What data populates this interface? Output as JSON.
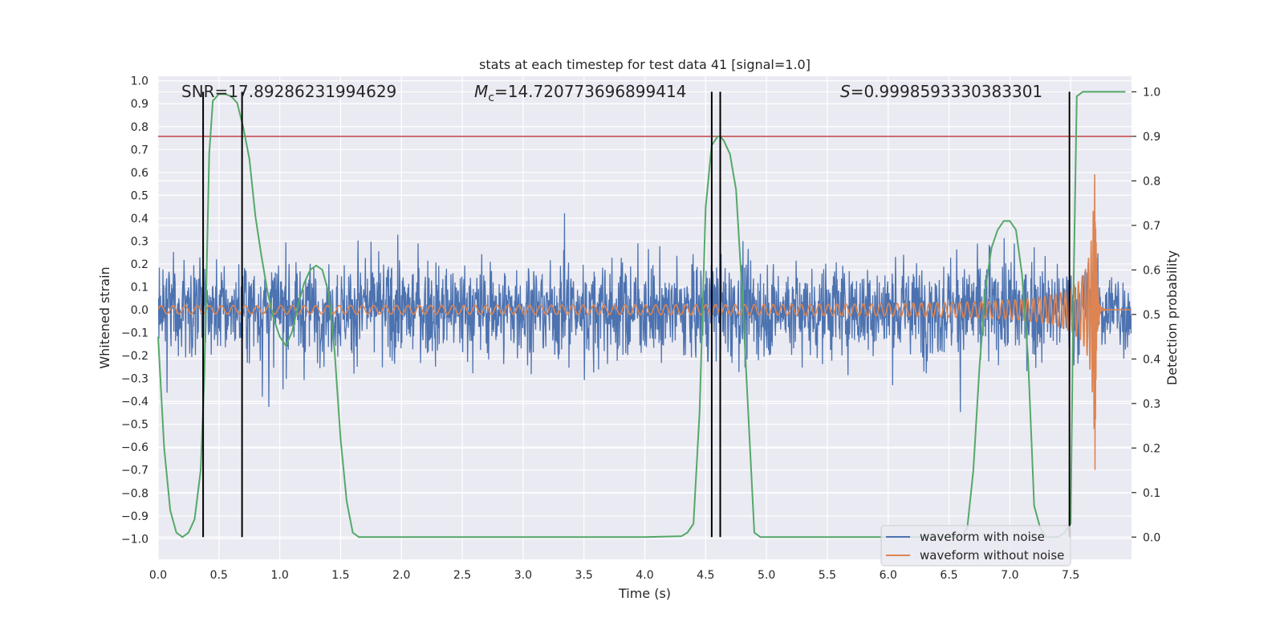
{
  "chart_data": {
    "type": "line",
    "title": "stats at each timestep for test data 41 [signal=1.0]",
    "xlabel": "Time (s)",
    "ylabel_left": "Whitened strain",
    "ylabel_right": "Detection probability",
    "xlim": [
      0.0,
      8.0
    ],
    "ylim_left": [
      -1.09,
      1.02
    ],
    "ylim_right": [
      -0.05,
      1.035
    ],
    "x_ticks": [
      "0.0",
      "0.5",
      "1.0",
      "1.5",
      "2.0",
      "2.5",
      "3.0",
      "3.5",
      "4.0",
      "4.5",
      "5.0",
      "5.5",
      "6.0",
      "6.5",
      "7.0",
      "7.5"
    ],
    "y_ticks_left": [
      "1.0",
      "0.9",
      "0.8",
      "0.7",
      "0.6",
      "0.5",
      "0.4",
      "0.3",
      "0.2",
      "0.1",
      "0.0",
      "−0.1",
      "−0.2",
      "−0.3",
      "−0.4",
      "−0.5",
      "−0.6",
      "−0.7",
      "−0.8",
      "−0.9",
      "−1.0"
    ],
    "y_ticks_right": [
      "1.0",
      "0.9",
      "0.8",
      "0.7",
      "0.6",
      "0.5",
      "0.4",
      "0.3",
      "0.2",
      "0.1",
      "0.0"
    ],
    "grid": true,
    "legend_position": "bottom-right",
    "annotations": {
      "snr": "SNR=17.89286231994629",
      "mc_symbol": "M",
      "mc_subscript": "c",
      "mc_value": "=14.720773696899414",
      "s_symbol": "S",
      "s_value": "=0.9998593330383301"
    },
    "threshold_line": {
      "y_right": 0.9,
      "color": "#c44e52"
    },
    "vertical_markers_x": [
      0.37,
      0.69,
      4.55,
      4.62,
      7.49
    ],
    "series": [
      {
        "name": "waveform with noise",
        "color": "#4c72b0",
        "axis": "left",
        "kind": "noise",
        "envelope_typical": 0.35,
        "envelope_peak": 0.83,
        "x_range": [
          0.0,
          8.0
        ]
      },
      {
        "name": "waveform without noise",
        "color": "#dd8452",
        "axis": "left",
        "kind": "chirp",
        "amplitude_start": 0.015,
        "amplitude_peak": 0.7,
        "merger_time": 7.7,
        "x_range": [
          0.0,
          8.0
        ]
      },
      {
        "name": "detection probability",
        "color": "#55a868",
        "axis": "right",
        "kind": "line",
        "x": [
          0.0,
          0.05,
          0.1,
          0.15,
          0.2,
          0.25,
          0.3,
          0.35,
          0.38,
          0.42,
          0.45,
          0.5,
          0.55,
          0.6,
          0.65,
          0.7,
          0.75,
          0.8,
          0.85,
          0.9,
          0.95,
          1.0,
          1.05,
          1.1,
          1.15,
          1.2,
          1.25,
          1.3,
          1.35,
          1.4,
          1.45,
          1.5,
          1.55,
          1.6,
          1.65,
          1.7,
          2.0,
          3.0,
          4.0,
          4.3,
          4.35,
          4.4,
          4.45,
          4.5,
          4.55,
          4.6,
          4.62,
          4.65,
          4.7,
          4.75,
          4.8,
          4.85,
          4.9,
          4.95,
          5.0,
          5.5,
          6.0,
          6.5,
          6.6,
          6.65,
          6.7,
          6.75,
          6.8,
          6.85,
          6.9,
          6.95,
          7.0,
          7.05,
          7.1,
          7.15,
          7.2,
          7.25,
          7.3,
          7.35,
          7.4,
          7.45,
          7.5,
          7.52,
          7.55,
          7.6,
          7.65,
          7.7,
          7.8,
          7.9,
          7.95
        ],
        "y": [
          0.45,
          0.2,
          0.06,
          0.01,
          0.0,
          0.01,
          0.04,
          0.15,
          0.36,
          0.86,
          0.98,
          0.995,
          0.995,
          0.99,
          0.975,
          0.92,
          0.85,
          0.72,
          0.63,
          0.55,
          0.49,
          0.45,
          0.43,
          0.46,
          0.52,
          0.57,
          0.6,
          0.61,
          0.6,
          0.55,
          0.42,
          0.22,
          0.08,
          0.01,
          0.0,
          0.0,
          0.0,
          0.0,
          0.0,
          0.002,
          0.01,
          0.03,
          0.28,
          0.74,
          0.88,
          0.9,
          0.9,
          0.89,
          0.86,
          0.78,
          0.55,
          0.28,
          0.01,
          0.0,
          0.0,
          0.0,
          0.0,
          0.0,
          0.001,
          0.02,
          0.15,
          0.38,
          0.56,
          0.65,
          0.69,
          0.71,
          0.71,
          0.69,
          0.59,
          0.4,
          0.07,
          0.02,
          0.0,
          0.0,
          0.0,
          0.01,
          0.03,
          0.5,
          0.99,
          1.0,
          1.0,
          1.0,
          1.0,
          1.0,
          1.0
        ]
      }
    ]
  }
}
